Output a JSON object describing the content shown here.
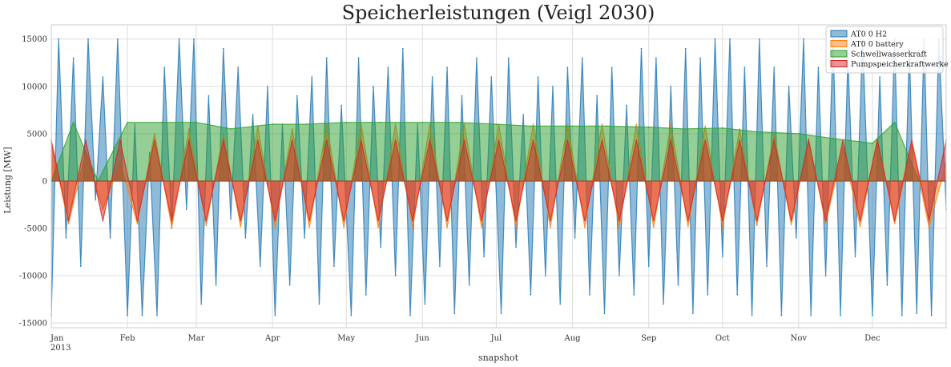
{
  "chart_data": {
    "type": "area",
    "title": "Speicherleistungen (Veigl 2030)",
    "xlabel": "snapshot",
    "ylabel": "Leistung [MW]",
    "ylim": [
      -15500,
      16500
    ],
    "yticks": [
      -15000,
      -10000,
      -5000,
      0,
      5000,
      10000,
      15000
    ],
    "x_range": [
      "2013-01-01",
      "2013-12-31"
    ],
    "x_ticks": [
      {
        "date": "2013-01-01",
        "label": "Jan",
        "sublabel": "2013"
      },
      {
        "date": "2013-02-01",
        "label": "Feb"
      },
      {
        "date": "2013-03-01",
        "label": "Mar"
      },
      {
        "date": "2013-04-01",
        "label": "Apr"
      },
      {
        "date": "2013-05-01",
        "label": "May"
      },
      {
        "date": "2013-06-01",
        "label": "Jun"
      },
      {
        "date": "2013-07-01",
        "label": "Jul"
      },
      {
        "date": "2013-08-01",
        "label": "Aug"
      },
      {
        "date": "2013-09-01",
        "label": "Sep"
      },
      {
        "date": "2013-10-01",
        "label": "Oct"
      },
      {
        "date": "2013-11-01",
        "label": "Nov"
      },
      {
        "date": "2013-12-01",
        "label": "Dec"
      }
    ],
    "grid": true,
    "legend_position": "top-right",
    "series": [
      {
        "name": "AT0 0 H2",
        "color": "#1f77b4",
        "max": 15000,
        "min": -14200,
        "values": [
          [
            "2013-01-01",
            -14200
          ],
          [
            "2013-01-04",
            15000
          ],
          [
            "2013-01-07",
            -6000
          ],
          [
            "2013-01-10",
            13000
          ],
          [
            "2013-01-13",
            -9000
          ],
          [
            "2013-01-16",
            15000
          ],
          [
            "2013-01-19",
            -2000
          ],
          [
            "2013-01-22",
            11000
          ],
          [
            "2013-01-25",
            -6000
          ],
          [
            "2013-01-28",
            15000
          ],
          [
            "2013-02-01",
            -14200
          ],
          [
            "2013-02-04",
            6000
          ],
          [
            "2013-02-07",
            -14200
          ],
          [
            "2013-02-10",
            3000
          ],
          [
            "2013-02-13",
            -14200
          ],
          [
            "2013-02-16",
            12000
          ],
          [
            "2013-02-19",
            -5000
          ],
          [
            "2013-02-22",
            15000
          ],
          [
            "2013-02-25",
            -3000
          ],
          [
            "2013-02-28",
            15000
          ],
          [
            "2013-03-03",
            -13000
          ],
          [
            "2013-03-06",
            9000
          ],
          [
            "2013-03-09",
            -11000
          ],
          [
            "2013-03-12",
            14000
          ],
          [
            "2013-03-15",
            -4000
          ],
          [
            "2013-03-18",
            12000
          ],
          [
            "2013-03-21",
            -6000
          ],
          [
            "2013-03-24",
            7000
          ],
          [
            "2013-03-27",
            -9000
          ],
          [
            "2013-03-30",
            10000
          ],
          [
            "2013-04-02",
            -14200
          ],
          [
            "2013-04-05",
            6000
          ],
          [
            "2013-04-08",
            -11000
          ],
          [
            "2013-04-11",
            9000
          ],
          [
            "2013-04-14",
            -6000
          ],
          [
            "2013-04-17",
            11000
          ],
          [
            "2013-04-20",
            -13000
          ],
          [
            "2013-04-23",
            13000
          ],
          [
            "2013-04-26",
            -9000
          ],
          [
            "2013-04-29",
            8000
          ],
          [
            "2013-05-03",
            -14200
          ],
          [
            "2013-05-06",
            13000
          ],
          [
            "2013-05-09",
            -12000
          ],
          [
            "2013-05-12",
            10000
          ],
          [
            "2013-05-15",
            -7000
          ],
          [
            "2013-05-18",
            12000
          ],
          [
            "2013-05-21",
            -10000
          ],
          [
            "2013-05-24",
            14000
          ],
          [
            "2013-05-27",
            -14200
          ],
          [
            "2013-05-30",
            6000
          ],
          [
            "2013-06-02",
            -13000
          ],
          [
            "2013-06-05",
            11000
          ],
          [
            "2013-06-08",
            -9000
          ],
          [
            "2013-06-11",
            12000
          ],
          [
            "2013-06-14",
            -14000
          ],
          [
            "2013-06-17",
            9000
          ],
          [
            "2013-06-20",
            -11000
          ],
          [
            "2013-06-23",
            13000
          ],
          [
            "2013-06-26",
            -8000
          ],
          [
            "2013-06-29",
            11000
          ],
          [
            "2013-07-03",
            -14000
          ],
          [
            "2013-07-06",
            13000
          ],
          [
            "2013-07-09",
            -7000
          ],
          [
            "2013-07-12",
            7000
          ],
          [
            "2013-07-15",
            -12000
          ],
          [
            "2013-07-18",
            11000
          ],
          [
            "2013-07-21",
            -10000
          ],
          [
            "2013-07-24",
            10000
          ],
          [
            "2013-07-27",
            -13000
          ],
          [
            "2013-07-30",
            12000
          ],
          [
            "2013-08-02",
            -6000
          ],
          [
            "2013-08-05",
            13000
          ],
          [
            "2013-08-08",
            -12000
          ],
          [
            "2013-08-11",
            9000
          ],
          [
            "2013-08-14",
            -14000
          ],
          [
            "2013-08-17",
            12000
          ],
          [
            "2013-08-20",
            -10000
          ],
          [
            "2013-08-23",
            8000
          ],
          [
            "2013-08-26",
            -12000
          ],
          [
            "2013-08-29",
            14000
          ],
          [
            "2013-09-01",
            -9000
          ],
          [
            "2013-09-04",
            13000
          ],
          [
            "2013-09-07",
            -13000
          ],
          [
            "2013-09-10",
            10000
          ],
          [
            "2013-09-13",
            -11000
          ],
          [
            "2013-09-16",
            14000
          ],
          [
            "2013-09-19",
            -14000
          ],
          [
            "2013-09-22",
            13000
          ],
          [
            "2013-09-25",
            -12000
          ],
          [
            "2013-09-28",
            15000
          ],
          [
            "2013-10-01",
            -8000
          ],
          [
            "2013-10-04",
            15000
          ],
          [
            "2013-10-07",
            -12000
          ],
          [
            "2013-10-10",
            12000
          ],
          [
            "2013-10-13",
            -14200
          ],
          [
            "2013-10-16",
            15000
          ],
          [
            "2013-10-19",
            -9000
          ],
          [
            "2013-10-22",
            12000
          ],
          [
            "2013-10-25",
            -14200
          ],
          [
            "2013-10-28",
            10000
          ],
          [
            "2013-10-31",
            -6000
          ],
          [
            "2013-11-03",
            15000
          ],
          [
            "2013-11-06",
            -14200
          ],
          [
            "2013-11-09",
            12000
          ],
          [
            "2013-11-12",
            -10000
          ],
          [
            "2013-11-15",
            15000
          ],
          [
            "2013-11-18",
            -14200
          ],
          [
            "2013-11-21",
            13000
          ],
          [
            "2013-11-24",
            -8000
          ],
          [
            "2013-11-27",
            15000
          ],
          [
            "2013-12-01",
            -14200
          ],
          [
            "2013-12-04",
            11000
          ],
          [
            "2013-12-07",
            -11000
          ],
          [
            "2013-12-10",
            15000
          ],
          [
            "2013-12-13",
            -14200
          ],
          [
            "2013-12-16",
            14000
          ],
          [
            "2013-12-19",
            -14000
          ],
          [
            "2013-12-22",
            15000
          ],
          [
            "2013-12-25",
            -14200
          ],
          [
            "2013-12-28",
            15000
          ],
          [
            "2013-12-31",
            -3000
          ]
        ]
      },
      {
        "name": "AT0 0 battery",
        "color": "#ff7f0e",
        "max": 6000,
        "min": -4900,
        "values": [
          [
            "2013-01-01",
            4000
          ],
          [
            "2013-01-08",
            -4500
          ],
          [
            "2013-01-15",
            3000
          ],
          [
            "2013-01-22",
            -3000
          ],
          [
            "2013-01-29",
            2000
          ],
          [
            "2013-02-05",
            -4500
          ],
          [
            "2013-02-12",
            5000
          ],
          [
            "2013-02-19",
            -4900
          ],
          [
            "2013-02-26",
            5500
          ],
          [
            "2013-03-05",
            -4700
          ],
          [
            "2013-03-12",
            5000
          ],
          [
            "2013-03-19",
            -4800
          ],
          [
            "2013-03-26",
            5800
          ],
          [
            "2013-04-02",
            -4900
          ],
          [
            "2013-04-09",
            5500
          ],
          [
            "2013-04-16",
            -4900
          ],
          [
            "2013-04-23",
            6000
          ],
          [
            "2013-04-30",
            -4900
          ],
          [
            "2013-05-07",
            6000
          ],
          [
            "2013-05-14",
            -4900
          ],
          [
            "2013-05-21",
            6000
          ],
          [
            "2013-05-28",
            -4900
          ],
          [
            "2013-06-04",
            6000
          ],
          [
            "2013-06-11",
            -4900
          ],
          [
            "2013-06-18",
            6000
          ],
          [
            "2013-06-25",
            -4900
          ],
          [
            "2013-07-02",
            6000
          ],
          [
            "2013-07-09",
            -4900
          ],
          [
            "2013-07-16",
            6000
          ],
          [
            "2013-07-23",
            -4900
          ],
          [
            "2013-07-30",
            6000
          ],
          [
            "2013-08-06",
            -4900
          ],
          [
            "2013-08-13",
            6000
          ],
          [
            "2013-08-20",
            -4900
          ],
          [
            "2013-08-27",
            6000
          ],
          [
            "2013-09-03",
            -4900
          ],
          [
            "2013-09-10",
            6000
          ],
          [
            "2013-09-17",
            -4800
          ],
          [
            "2013-09-24",
            5800
          ],
          [
            "2013-10-01",
            -4800
          ],
          [
            "2013-10-08",
            5500
          ],
          [
            "2013-10-15",
            -4700
          ],
          [
            "2013-10-22",
            5000
          ],
          [
            "2013-10-29",
            -4600
          ],
          [
            "2013-11-05",
            4500
          ],
          [
            "2013-11-12",
            -4500
          ],
          [
            "2013-11-19",
            3500
          ],
          [
            "2013-11-26",
            -4800
          ],
          [
            "2013-12-03",
            4500
          ],
          [
            "2013-12-10",
            -4500
          ],
          [
            "2013-12-17",
            4000
          ],
          [
            "2013-12-24",
            -4900
          ],
          [
            "2013-12-31",
            2000
          ]
        ]
      },
      {
        "name": "Schwellwasserkraft",
        "color": "#2ca02c",
        "max": 6200,
        "min": 0,
        "values": [
          [
            "2013-01-01",
            0
          ],
          [
            "2013-01-10",
            6200
          ],
          [
            "2013-01-20",
            0
          ],
          [
            "2013-02-01",
            6200
          ],
          [
            "2013-02-15",
            6200
          ],
          [
            "2013-03-01",
            6200
          ],
          [
            "2013-03-15",
            5500
          ],
          [
            "2013-04-01",
            6000
          ],
          [
            "2013-04-15",
            6000
          ],
          [
            "2013-05-01",
            6200
          ],
          [
            "2013-05-15",
            6200
          ],
          [
            "2013-06-01",
            6200
          ],
          [
            "2013-06-15",
            6200
          ],
          [
            "2013-07-01",
            6000
          ],
          [
            "2013-07-15",
            5800
          ],
          [
            "2013-08-01",
            5800
          ],
          [
            "2013-08-15",
            5800
          ],
          [
            "2013-09-01",
            5700
          ],
          [
            "2013-09-15",
            5500
          ],
          [
            "2013-10-01",
            5600
          ],
          [
            "2013-10-15",
            5200
          ],
          [
            "2013-11-01",
            5000
          ],
          [
            "2013-11-15",
            4500
          ],
          [
            "2013-12-01",
            4000
          ],
          [
            "2013-12-10",
            6200
          ],
          [
            "2013-12-20",
            0
          ],
          [
            "2013-12-31",
            0
          ]
        ]
      },
      {
        "name": "Pumpspeicherkraftwerke",
        "color": "#d62728",
        "max": 4300,
        "min": -4200,
        "values": [
          [
            "2013-01-01",
            4300
          ],
          [
            "2013-01-08",
            -4200
          ],
          [
            "2013-01-15",
            4300
          ],
          [
            "2013-01-22",
            -4200
          ],
          [
            "2013-01-29",
            4300
          ],
          [
            "2013-02-05",
            -4200
          ],
          [
            "2013-02-12",
            4300
          ],
          [
            "2013-02-19",
            -4200
          ],
          [
            "2013-02-26",
            4300
          ],
          [
            "2013-03-05",
            -4200
          ],
          [
            "2013-03-12",
            4300
          ],
          [
            "2013-03-19",
            -4200
          ],
          [
            "2013-03-26",
            4300
          ],
          [
            "2013-04-02",
            -4200
          ],
          [
            "2013-04-09",
            4300
          ],
          [
            "2013-04-16",
            -4200
          ],
          [
            "2013-04-23",
            4300
          ],
          [
            "2013-04-30",
            -4200
          ],
          [
            "2013-05-07",
            4300
          ],
          [
            "2013-05-14",
            -4200
          ],
          [
            "2013-05-21",
            4300
          ],
          [
            "2013-05-28",
            -4200
          ],
          [
            "2013-06-04",
            4300
          ],
          [
            "2013-06-11",
            -4200
          ],
          [
            "2013-06-18",
            4300
          ],
          [
            "2013-06-25",
            -4200
          ],
          [
            "2013-07-02",
            4300
          ],
          [
            "2013-07-09",
            -4200
          ],
          [
            "2013-07-16",
            4300
          ],
          [
            "2013-07-23",
            -4200
          ],
          [
            "2013-07-30",
            4300
          ],
          [
            "2013-08-06",
            -4200
          ],
          [
            "2013-08-13",
            4300
          ],
          [
            "2013-08-20",
            -4200
          ],
          [
            "2013-08-27",
            4300
          ],
          [
            "2013-09-03",
            -4200
          ],
          [
            "2013-09-10",
            4300
          ],
          [
            "2013-09-17",
            -4200
          ],
          [
            "2013-09-24",
            4300
          ],
          [
            "2013-10-01",
            -4200
          ],
          [
            "2013-10-08",
            4300
          ],
          [
            "2013-10-15",
            -4200
          ],
          [
            "2013-10-22",
            4300
          ],
          [
            "2013-10-29",
            -4200
          ],
          [
            "2013-11-05",
            4300
          ],
          [
            "2013-11-12",
            -4200
          ],
          [
            "2013-11-19",
            4300
          ],
          [
            "2013-11-26",
            -4200
          ],
          [
            "2013-12-03",
            4300
          ],
          [
            "2013-12-10",
            -4200
          ],
          [
            "2013-12-17",
            4300
          ],
          [
            "2013-12-24",
            -4200
          ],
          [
            "2013-12-31",
            4300
          ]
        ]
      }
    ]
  }
}
